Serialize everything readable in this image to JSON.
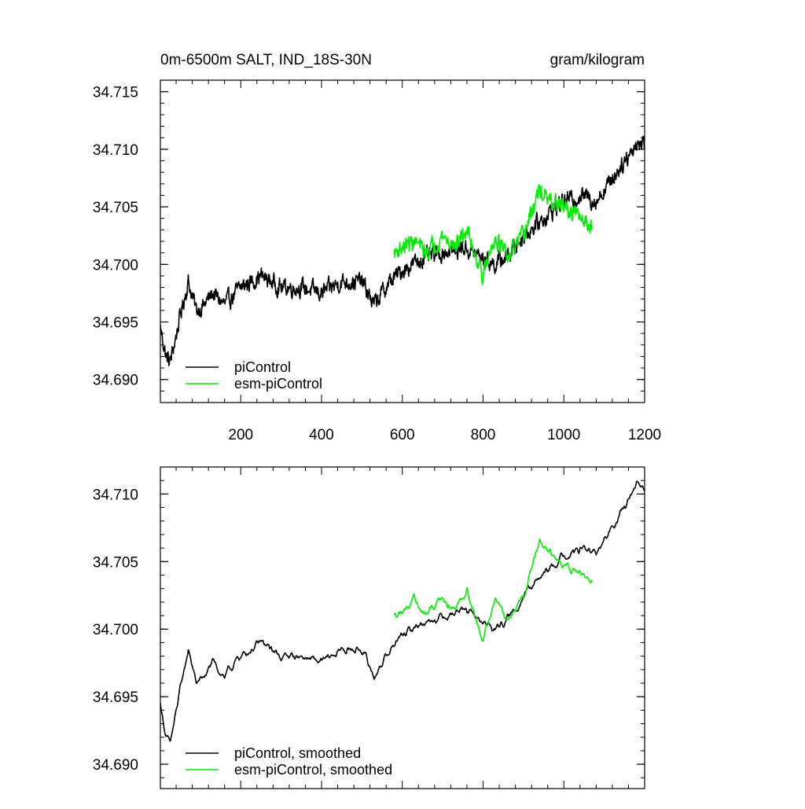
{
  "chart_data": [
    {
      "type": "line",
      "title_left": "0m-6500m SALT, IND_18S-30N",
      "title_right": "gram/kilogram",
      "xlim": [
        1,
        1200
      ],
      "ylim": [
        34.688,
        34.716
      ],
      "x_ticks": [
        200,
        400,
        600,
        800,
        1000,
        1200
      ],
      "x_tick_labels": [
        "200",
        "400",
        "600",
        "800",
        "1000",
        "1200"
      ],
      "y_ticks": [
        34.69,
        34.695,
        34.7,
        34.705,
        34.71,
        34.715
      ],
      "y_tick_labels": [
        "34.690",
        "34.695",
        "34.700",
        "34.705",
        "34.710",
        "34.715"
      ],
      "legend": {
        "placement": "bottom-left",
        "entries": [
          "piControl",
          "esm-piControl"
        ]
      },
      "series": [
        {
          "name": "piControl",
          "color": "#000000",
          "noise": 0.0011,
          "x": [
            1,
            15,
            25,
            35,
            50,
            70,
            90,
            110,
            130,
            160,
            200,
            250,
            300,
            350,
            400,
            450,
            500,
            530,
            550,
            570,
            600,
            650,
            700,
            750,
            800,
            830,
            870,
            900,
            950,
            1000,
            1050,
            1080,
            1120,
            1150,
            1180,
            1200
          ],
          "values": [
            34.6945,
            34.692,
            34.6915,
            34.693,
            34.6955,
            34.6985,
            34.696,
            34.6965,
            34.6975,
            34.6965,
            34.698,
            34.699,
            34.698,
            34.698,
            34.6975,
            34.6985,
            34.6985,
            34.6965,
            34.6975,
            34.6985,
            34.6995,
            34.7005,
            34.701,
            34.7015,
            34.7005,
            34.7,
            34.701,
            34.7025,
            34.704,
            34.7055,
            34.706,
            34.7055,
            34.7075,
            34.709,
            34.7105,
            34.7105
          ]
        },
        {
          "name": "esm-piControl",
          "color": "#00ee00",
          "noise": 0.0011,
          "x": [
            580,
            600,
            630,
            660,
            700,
            730,
            760,
            800,
            830,
            860,
            900,
            940,
            960,
            1000,
            1040,
            1070
          ],
          "values": [
            34.701,
            34.7015,
            34.702,
            34.701,
            34.7025,
            34.7015,
            34.703,
            34.699,
            34.7025,
            34.7005,
            34.7025,
            34.7065,
            34.7055,
            34.705,
            34.704,
            34.7035
          ]
        }
      ]
    },
    {
      "type": "line",
      "xlim": [
        1,
        1200
      ],
      "ylim": [
        34.6882,
        34.712
      ],
      "x_ticks": [
        200,
        400,
        600,
        800,
        1000,
        1200
      ],
      "y_ticks": [
        34.69,
        34.695,
        34.7,
        34.705,
        34.71
      ],
      "y_tick_labels": [
        "34.690",
        "34.695",
        "34.700",
        "34.705",
        "34.710"
      ],
      "legend": {
        "placement": "bottom-left",
        "entries": [
          "piControl, smoothed",
          "esm-piControl, smoothed"
        ]
      },
      "series": [
        {
          "name": "piControl, smoothed",
          "color": "#000000",
          "noise": 0.00065,
          "x": [
            1,
            15,
            25,
            35,
            50,
            70,
            90,
            110,
            130,
            160,
            200,
            250,
            300,
            350,
            400,
            450,
            500,
            530,
            550,
            570,
            600,
            650,
            700,
            750,
            800,
            830,
            870,
            900,
            950,
            1000,
            1050,
            1080,
            1120,
            1150,
            1180,
            1200
          ],
          "values": [
            34.6945,
            34.692,
            34.6915,
            34.693,
            34.6955,
            34.6985,
            34.696,
            34.6965,
            34.6975,
            34.6965,
            34.698,
            34.699,
            34.698,
            34.698,
            34.6975,
            34.6985,
            34.6985,
            34.6965,
            34.6975,
            34.6985,
            34.6995,
            34.7005,
            34.701,
            34.7015,
            34.7005,
            34.7,
            34.701,
            34.7025,
            34.704,
            34.7055,
            34.706,
            34.7055,
            34.7075,
            34.709,
            34.7105,
            34.7105
          ]
        },
        {
          "name": "esm-piControl, smoothed",
          "color": "#00ee00",
          "noise": 0.0007,
          "x": [
            580,
            600,
            630,
            660,
            700,
            730,
            760,
            800,
            830,
            860,
            900,
            940,
            960,
            1000,
            1040,
            1070
          ],
          "values": [
            34.701,
            34.7015,
            34.702,
            34.701,
            34.7025,
            34.7015,
            34.703,
            34.699,
            34.7025,
            34.7005,
            34.7025,
            34.7065,
            34.7055,
            34.705,
            34.704,
            34.7035
          ]
        }
      ]
    }
  ]
}
